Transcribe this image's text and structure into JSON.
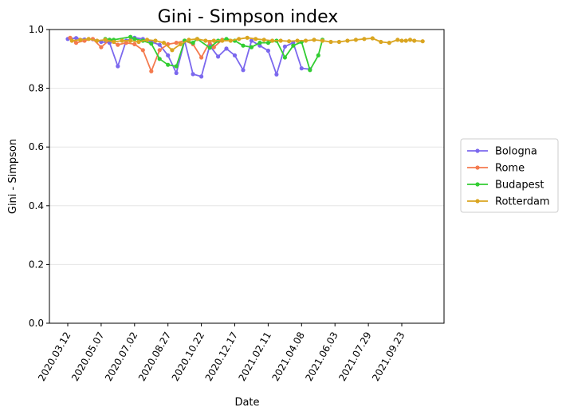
{
  "chart_data": {
    "type": "line",
    "title": "Gini - Simpson index",
    "xlabel": "Date",
    "ylabel": "Gini - Simpson",
    "ylim": [
      0,
      1
    ],
    "yticks": [
      "0.0",
      "0.2",
      "0.4",
      "0.6",
      "0.8",
      "1.0"
    ],
    "xticks": [
      "2020.03.12",
      "2020.05.07",
      "2020.07.02",
      "2020.08.27",
      "2020.10.22",
      "2020.12.17",
      "2021.02.11",
      "2021.04.08",
      "2021.06.03",
      "2021.07.29",
      "2021.09.23"
    ],
    "grid": "horizontal",
    "legend_position": "right",
    "series": [
      {
        "name": "Bologna",
        "color": "#7B68EE",
        "x": [
          "2020-03-12",
          "2020-03-26",
          "2020-04-09",
          "2020-04-23",
          "2020-05-07",
          "2020-05-21",
          "2020-06-04",
          "2020-06-18",
          "2020-07-02",
          "2020-07-16",
          "2020-07-30",
          "2020-08-13",
          "2020-08-27",
          "2020-09-10",
          "2020-09-24",
          "2020-10-08",
          "2020-10-22",
          "2020-11-05",
          "2020-11-19",
          "2020-12-03",
          "2020-12-17",
          "2020-12-31",
          "2021-01-14",
          "2021-01-28",
          "2021-02-11",
          "2021-02-25",
          "2021-03-11",
          "2021-03-25",
          "2021-04-08",
          "2021-04-22"
        ],
        "y": [
          0.968,
          0.971,
          0.966,
          0.967,
          0.958,
          0.955,
          0.875,
          0.962,
          0.972,
          0.968,
          0.958,
          0.948,
          0.912,
          0.852,
          0.962,
          0.848,
          0.84,
          0.945,
          0.908,
          0.935,
          0.912,
          0.862,
          0.962,
          0.945,
          0.928,
          0.847,
          0.942,
          0.955,
          0.868,
          0.865
        ]
      },
      {
        "name": "Rome",
        "color": "#F47A4E",
        "x": [
          "2020-03-16",
          "2020-03-26",
          "2020-04-09",
          "2020-04-23",
          "2020-05-07",
          "2020-05-21",
          "2020-06-04",
          "2020-06-18",
          "2020-07-02",
          "2020-07-16",
          "2020-07-30",
          "2020-08-13",
          "2020-08-27",
          "2020-09-10",
          "2020-09-24",
          "2020-10-08",
          "2020-10-22",
          "2020-11-05",
          "2020-11-12",
          "2020-11-26"
        ],
        "y": [
          0.972,
          0.955,
          0.962,
          0.968,
          0.94,
          0.965,
          0.948,
          0.955,
          0.95,
          0.93,
          0.858,
          0.93,
          0.95,
          0.955,
          0.962,
          0.95,
          0.905,
          0.958,
          0.94,
          0.965
        ]
      },
      {
        "name": "Budapest",
        "color": "#32CD32",
        "x": [
          "2020-05-14",
          "2020-05-21",
          "2020-05-28",
          "2020-06-25",
          "2020-07-02",
          "2020-07-16",
          "2020-07-30",
          "2020-08-13",
          "2020-08-27",
          "2020-09-10",
          "2020-09-24",
          "2020-10-08",
          "2020-10-15",
          "2020-11-05",
          "2020-11-19",
          "2020-12-03",
          "2020-12-17",
          "2020-12-31",
          "2021-01-14",
          "2021-01-28",
          "2021-02-11",
          "2021-02-25",
          "2021-03-11",
          "2021-03-25",
          "2021-04-08",
          "2021-04-22",
          "2021-05-06",
          "2021-05-13"
        ],
        "y": [
          0.968,
          0.965,
          0.965,
          0.975,
          0.968,
          0.962,
          0.952,
          0.9,
          0.88,
          0.875,
          0.962,
          0.955,
          0.968,
          0.938,
          0.962,
          0.968,
          0.962,
          0.945,
          0.94,
          0.955,
          0.955,
          0.962,
          0.905,
          0.945,
          0.958,
          0.862,
          0.912,
          0.965
        ]
      },
      {
        "name": "Rotterdam",
        "color": "#DAA520",
        "x": [
          "2020-03-19",
          "2020-04-02",
          "2020-04-16",
          "2020-04-30",
          "2020-05-14",
          "2020-05-28",
          "2020-06-11",
          "2020-06-25",
          "2020-07-09",
          "2020-07-23",
          "2020-08-06",
          "2020-08-20",
          "2020-09-03",
          "2020-09-17",
          "2020-10-01",
          "2020-10-15",
          "2020-10-29",
          "2020-11-12",
          "2020-11-26",
          "2020-12-10",
          "2020-12-24",
          "2021-01-07",
          "2021-01-21",
          "2021-02-04",
          "2021-02-18",
          "2021-03-04",
          "2021-03-18",
          "2021-04-01",
          "2021-04-15",
          "2021-04-29",
          "2021-05-13",
          "2021-05-27",
          "2021-06-10",
          "2021-06-24",
          "2021-07-08",
          "2021-07-22",
          "2021-08-05",
          "2021-08-19",
          "2021-09-02",
          "2021-09-16",
          "2021-09-23",
          "2021-09-30",
          "2021-10-07",
          "2021-10-14",
          "2021-10-28"
        ],
        "y": [
          0.962,
          0.965,
          0.968,
          0.962,
          0.965,
          0.958,
          0.962,
          0.962,
          0.958,
          0.965,
          0.962,
          0.955,
          0.93,
          0.95,
          0.965,
          0.968,
          0.962,
          0.962,
          0.962,
          0.962,
          0.968,
          0.972,
          0.968,
          0.965,
          0.962,
          0.962,
          0.96,
          0.962,
          0.962,
          0.965,
          0.962,
          0.958,
          0.958,
          0.962,
          0.965,
          0.968,
          0.97,
          0.958,
          0.955,
          0.965,
          0.962,
          0.962,
          0.965,
          0.962,
          0.96
        ]
      }
    ]
  }
}
